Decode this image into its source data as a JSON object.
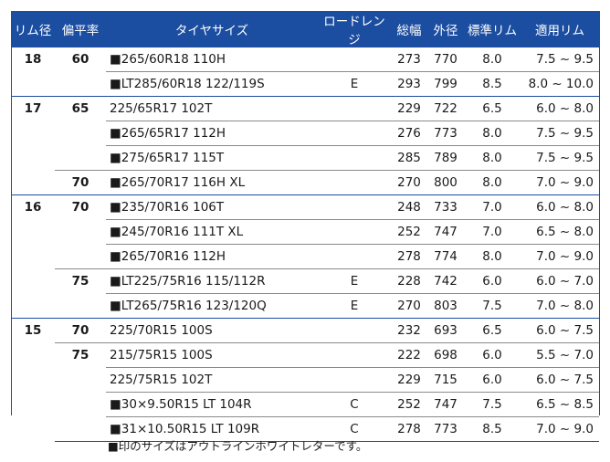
{
  "headers": [
    "リム径",
    "偏平率",
    "タイヤサイズ",
    "ロードレンジ",
    "総幅",
    "外径",
    "標準リム",
    "適用リム"
  ],
  "groups": [
    {
      "rim": "18",
      "subgroups": [
        {
          "aspect": "60",
          "rows": [
            {
              "mark": "■",
              "size": "265/60R18 110H",
              "load": "",
              "width": "273",
              "diameter": "770",
              "std_rim": "8.0",
              "app_rim": "7.5 ~ 9.5"
            },
            {
              "mark": "■",
              "size": "LT285/60R18 122/119S",
              "load": "E",
              "width": "293",
              "diameter": "799",
              "std_rim": "8.5",
              "app_rim": "8.0 ~ 10.0"
            }
          ]
        }
      ]
    },
    {
      "rim": "17",
      "subgroups": [
        {
          "aspect": "65",
          "rows": [
            {
              "mark": "",
              "size": "225/65R17 102T",
              "load": "",
              "width": "229",
              "diameter": "722",
              "std_rim": "6.5",
              "app_rim": "6.0 ~ 8.0"
            },
            {
              "mark": "■",
              "size": "265/65R17 112H",
              "load": "",
              "width": "276",
              "diameter": "773",
              "std_rim": "8.0",
              "app_rim": "7.5 ~ 9.5"
            },
            {
              "mark": "■",
              "size": "275/65R17 115T",
              "load": "",
              "width": "285",
              "diameter": "789",
              "std_rim": "8.0",
              "app_rim": "7.5 ~ 9.5"
            }
          ]
        },
        {
          "aspect": "70",
          "rows": [
            {
              "mark": "■",
              "size": "265/70R17 116H XL",
              "load": "",
              "width": "270",
              "diameter": "800",
              "std_rim": "8.0",
              "app_rim": "7.0 ~ 9.0"
            }
          ]
        }
      ]
    },
    {
      "rim": "16",
      "subgroups": [
        {
          "aspect": "70",
          "rows": [
            {
              "mark": "■",
              "size": "235/70R16 106T",
              "load": "",
              "width": "248",
              "diameter": "733",
              "std_rim": "7.0",
              "app_rim": "6.0 ~ 8.0"
            },
            {
              "mark": "■",
              "size": "245/70R16 111T XL",
              "load": "",
              "width": "252",
              "diameter": "747",
              "std_rim": "7.0",
              "app_rim": "6.5 ~ 8.0"
            },
            {
              "mark": "■",
              "size": "265/70R16 112H",
              "load": "",
              "width": "278",
              "diameter": "774",
              "std_rim": "8.0",
              "app_rim": "7.0 ~ 9.0"
            }
          ]
        },
        {
          "aspect": "75",
          "rows": [
            {
              "mark": "■",
              "size": "LT225/75R16 115/112R",
              "load": "E",
              "width": "228",
              "diameter": "742",
              "std_rim": "6.0",
              "app_rim": "6.0 ~ 7.0"
            },
            {
              "mark": "■",
              "size": "LT265/75R16 123/120Q",
              "load": "E",
              "width": "270",
              "diameter": "803",
              "std_rim": "7.5",
              "app_rim": "7.0 ~ 8.0"
            }
          ]
        }
      ]
    },
    {
      "rim": "15",
      "subgroups": [
        {
          "aspect": "70",
          "rows": [
            {
              "mark": "",
              "size": "225/70R15 100S",
              "load": "",
              "width": "232",
              "diameter": "693",
              "std_rim": "6.5",
              "app_rim": "6.0 ~ 7.5"
            }
          ]
        },
        {
          "aspect": "75",
          "rows": [
            {
              "mark": "",
              "size": "215/75R15 100S",
              "load": "",
              "width": "222",
              "diameter": "698",
              "std_rim": "6.0",
              "app_rim": "5.5 ~ 7.0"
            },
            {
              "mark": "",
              "size": "225/75R15 102T",
              "load": "",
              "width": "229",
              "diameter": "715",
              "std_rim": "6.0",
              "app_rim": "6.0 ~ 7.5"
            },
            {
              "mark": "■",
              "size": "30×9.50R15 LT 104R",
              "load": "C",
              "width": "252",
              "diameter": "747",
              "std_rim": "7.5",
              "app_rim": "6.5 ~ 8.5"
            },
            {
              "mark": "■",
              "size": "31×10.50R15 LT 109R",
              "load": "C",
              "width": "278",
              "diameter": "773",
              "std_rim": "8.5",
              "app_rim": "7.0 ~ 9.0"
            }
          ]
        }
      ]
    }
  ],
  "note": "■印のサイズはアウトラインホワイトレターです。",
  "colors": {
    "header_bg": "#1b4da0",
    "header_text": "#ffffff",
    "row_line": "#8a8a8a"
  }
}
